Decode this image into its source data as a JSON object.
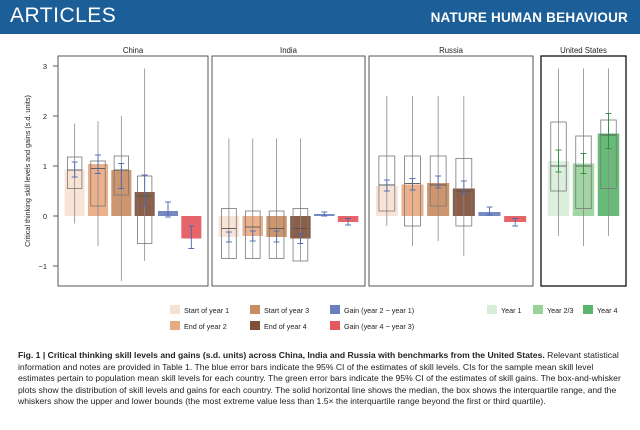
{
  "header": {
    "section": "ARTICLES",
    "journal": "NATURE HUMAN BEHAVIOUR"
  },
  "colors": {
    "start1": "#f6e2d2",
    "end2": "#e8aa82",
    "start3": "#c98d63",
    "end4": "#805038",
    "gain_blue": "#6a7fbd",
    "gain_red": "#e4585e",
    "year1": "#d9eed9",
    "year23": "#99d19b",
    "year4": "#5bb46e",
    "errbar_blue": "#4a66b0",
    "errbar_green": "#2e8b3f"
  },
  "chart_data": {
    "type": "bar",
    "ylabel": "Critical thinking skill levels and gains (s.d. units)",
    "ylim": [
      -1.4,
      3.2
    ],
    "yticks": [
      "3",
      "2",
      "1",
      "0",
      "−1"
    ],
    "ytick_values": [
      3,
      2,
      1,
      0,
      -1
    ],
    "panels": [
      {
        "name": "China",
        "bars": [
          {
            "series": "Start of year 1",
            "value": 0.93,
            "ci": [
              0.78,
              1.08
            ],
            "box": {
              "q1": 0.55,
              "med": 0.92,
              "q3": 1.18,
              "lo": -0.15,
              "hi": 1.85
            }
          },
          {
            "series": "End of year 2",
            "value": 1.04,
            "ci": [
              0.85,
              1.22
            ],
            "box": {
              "q1": 0.2,
              "med": 0.95,
              "q3": 1.1,
              "lo": -0.6,
              "hi": 1.9
            }
          },
          {
            "series": "Start of year 3",
            "value": 0.92,
            "ci": [
              0.55,
              1.05
            ],
            "box": {
              "q1": 0.42,
              "med": 0.92,
              "q3": 1.2,
              "lo": -1.3,
              "hi": 2.0
            }
          },
          {
            "series": "End of year 4",
            "value": 0.48,
            "ci": [
              0.2,
              0.82
            ],
            "box": {
              "q1": -0.55,
              "med": 0.4,
              "q3": 0.8,
              "lo": -0.9,
              "hi": 2.95
            }
          },
          {
            "series": "Gain (year 2 − year 1)",
            "value": 0.1,
            "ci": [
              -0.02,
              0.28
            ]
          },
          {
            "series": "Gain (year 4 − year 3)",
            "value": -0.45,
            "ci": [
              -0.65,
              -0.2
            ]
          }
        ]
      },
      {
        "name": "India",
        "bars": [
          {
            "series": "Start of year 1",
            "value": -0.42,
            "ci": [
              -0.52,
              -0.32
            ],
            "box": {
              "q1": -0.85,
              "med": -0.25,
              "q3": 0.15,
              "lo": -0.85,
              "hi": 1.55
            }
          },
          {
            "series": "End of year 2",
            "value": -0.4,
            "ci": [
              -0.5,
              -0.3
            ],
            "box": {
              "q1": -0.85,
              "med": -0.22,
              "q3": 0.1,
              "lo": -0.85,
              "hi": 1.55
            }
          },
          {
            "series": "Start of year 3",
            "value": -0.42,
            "ci": [
              -0.52,
              -0.3
            ],
            "box": {
              "q1": -0.85,
              "med": -0.25,
              "q3": 0.1,
              "lo": -0.85,
              "hi": 1.55
            }
          },
          {
            "series": "End of year 4",
            "value": -0.45,
            "ci": [
              -0.55,
              -0.35
            ],
            "box": {
              "q1": -0.9,
              "med": -0.25,
              "q3": 0.15,
              "lo": -0.9,
              "hi": 1.55
            }
          },
          {
            "series": "Gain (year 2 − year 1)",
            "value": 0.04,
            "ci": [
              0.0,
              0.08
            ]
          },
          {
            "series": "Gain (year 4 − year 3)",
            "value": -0.12,
            "ci": [
              -0.18,
              -0.05
            ]
          }
        ]
      },
      {
        "name": "Russia",
        "bars": [
          {
            "series": "Start of year 1",
            "value": 0.6,
            "ci": [
              0.5,
              0.72
            ],
            "box": {
              "q1": 0.1,
              "med": 0.62,
              "q3": 1.2,
              "lo": -0.2,
              "hi": 2.4
            }
          },
          {
            "series": "End of year 2",
            "value": 0.63,
            "ci": [
              0.52,
              0.75
            ],
            "box": {
              "q1": -0.2,
              "med": 0.65,
              "q3": 1.2,
              "lo": -0.6,
              "hi": 2.4
            }
          },
          {
            "series": "Start of year 3",
            "value": 0.66,
            "ci": [
              0.56,
              0.8
            ],
            "box": {
              "q1": 0.2,
              "med": 0.62,
              "q3": 1.2,
              "lo": -0.5,
              "hi": 2.4
            }
          },
          {
            "series": "End of year 4",
            "value": 0.55,
            "ci": [
              0.45,
              0.7
            ],
            "box": {
              "q1": -0.2,
              "med": 0.5,
              "q3": 1.15,
              "lo": -0.8,
              "hi": 2.4
            }
          },
          {
            "series": "Gain (year 2 − year 1)",
            "value": 0.08,
            "ci": [
              0.02,
              0.18
            ]
          },
          {
            "series": "Gain (year 4 − year 3)",
            "value": -0.12,
            "ci": [
              -0.2,
              -0.05
            ]
          }
        ]
      },
      {
        "name": "United States",
        "bars": [
          {
            "series": "Year 1",
            "value": 1.1,
            "ci": [
              0.88,
              1.32
            ],
            "box": {
              "q1": 0.5,
              "med": 1.0,
              "q3": 1.88,
              "lo": -0.4,
              "hi": 2.95
            }
          },
          {
            "series": "Year 2/3",
            "value": 1.05,
            "ci": [
              0.85,
              1.25
            ],
            "box": {
              "q1": 0.15,
              "med": 1.0,
              "q3": 1.6,
              "lo": -0.6,
              "hi": 2.95
            }
          },
          {
            "series": "Year 4",
            "value": 1.65,
            "ci": [
              1.35,
              2.05
            ],
            "box": {
              "q1": 0.55,
              "med": 1.62,
              "q3": 1.92,
              "lo": -0.4,
              "hi": 2.95
            }
          }
        ]
      }
    ],
    "legend": [
      {
        "label": "Start of year 1",
        "color_key": "start1"
      },
      {
        "label": "End of year 2",
        "color_key": "end2"
      },
      {
        "label": "Start of year 3",
        "color_key": "start3"
      },
      {
        "label": "End of year 4",
        "color_key": "end4"
      },
      {
        "label": "Gain (year 2 − year 1)",
        "color_key": "gain_blue"
      },
      {
        "label": "Gain (year 4 − year 3)",
        "color_key": "gain_red"
      },
      {
        "label": "Year 1",
        "color_key": "year1"
      },
      {
        "label": "Year 2/3",
        "color_key": "year23"
      },
      {
        "label": "Year 4",
        "color_key": "year4"
      }
    ],
    "grid": false
  },
  "caption": {
    "bold": "Fig. 1 | Critical thinking skill levels and gains (s.d. units) across China, India and Russia with benchmarks from the United States.",
    "body": " Relevant statistical information and notes are provided in Table 1. The blue error bars indicate the 95% CI of the estimates of skill levels. CIs for the sample mean skill level estimates pertain to population mean skill levels for each country. The green error bars indicate the 95% CI of the estimates of skill gains. The box-and-whisker plots show the distribution of skill levels and gains for each country. The solid horizontal line shows the median, the box shows the interquartile range, and the whiskers show the upper and lower bounds (the most extreme value less than 1.5× the interquartile range beyond the first or third quartile)."
  }
}
